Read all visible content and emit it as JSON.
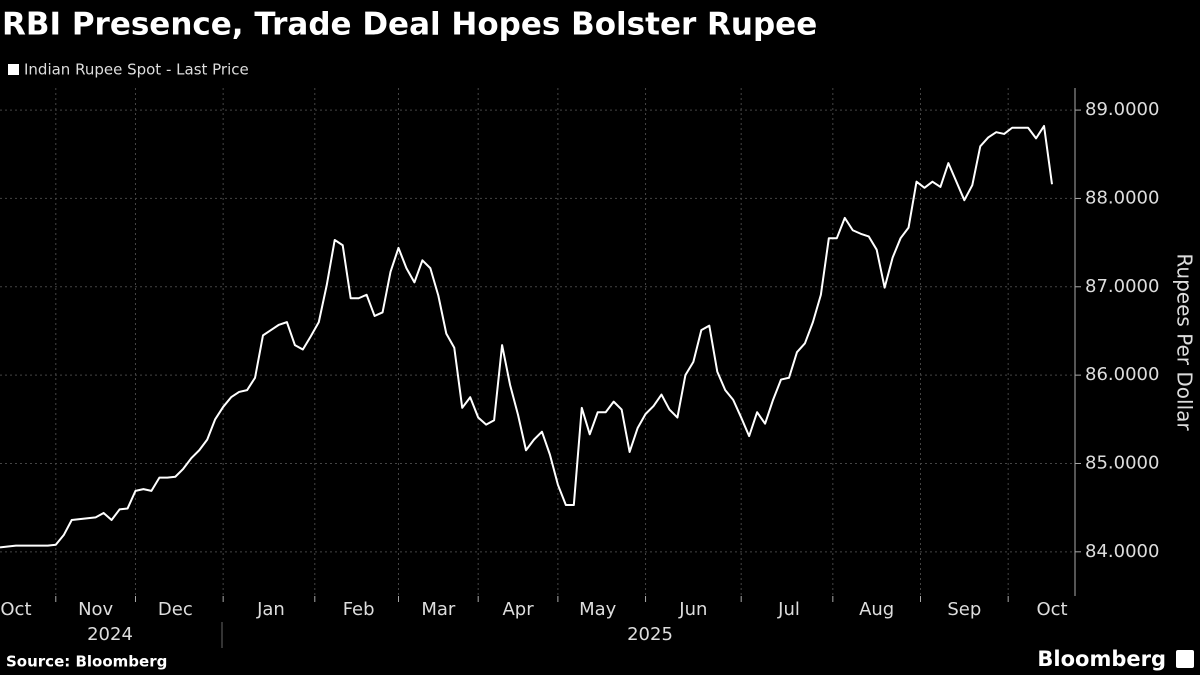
{
  "chart_data": {
    "type": "line",
    "title": "RBI Presence, Trade Deal Hopes Bolster Rupee",
    "y_axis_label": "Rupees Per Dollar",
    "source": "Source: Bloomberg",
    "brand": "Bloomberg",
    "x_group_labels": [
      "2024",
      "2025"
    ],
    "categories": [
      null,
      null,
      "Oct",
      null,
      null,
      null,
      null,
      null,
      null,
      null,
      null,
      null,
      "Nov",
      null,
      null,
      null,
      null,
      null,
      null,
      null,
      null,
      null,
      "Dec",
      null,
      null,
      null,
      null,
      null,
      null,
      null,
      null,
      null,
      null,
      null,
      "Jan",
      null,
      null,
      null,
      null,
      null,
      null,
      null,
      null,
      null,
      null,
      "Feb",
      null,
      null,
      null,
      null,
      null,
      null,
      null,
      null,
      null,
      "Mar",
      null,
      null,
      null,
      null,
      null,
      null,
      null,
      null,
      null,
      "Apr",
      null,
      null,
      null,
      null,
      null,
      null,
      null,
      null,
      null,
      "May",
      null,
      null,
      null,
      null,
      null,
      null,
      null,
      null,
      null,
      null,
      null,
      "Jun",
      null,
      null,
      null,
      null,
      null,
      null,
      null,
      null,
      null,
      null,
      null,
      "Jul",
      null,
      null,
      null,
      null,
      null,
      null,
      null,
      null,
      null,
      null,
      "Aug",
      null,
      null,
      null,
      null,
      null,
      null,
      null,
      null,
      null,
      null,
      "Sep",
      null,
      null,
      null,
      null,
      null,
      null,
      null,
      null,
      null,
      null,
      "Oct"
    ],
    "series": [
      {
        "name": "Indian Rupee Spot - Last Price",
        "color": "#ffffff",
        "values": [
          84.05,
          84.06,
          84.07,
          84.07,
          84.07,
          84.07,
          84.07,
          84.08,
          84.19,
          84.36,
          84.37,
          84.38,
          84.39,
          84.44,
          84.36,
          84.48,
          84.49,
          84.69,
          84.71,
          84.69,
          84.84,
          84.84,
          84.85,
          84.94,
          85.06,
          85.15,
          85.27,
          85.5,
          85.64,
          85.75,
          85.81,
          85.83,
          85.97,
          86.45,
          86.51,
          86.57,
          86.6,
          86.34,
          86.29,
          86.44,
          86.6,
          87.02,
          87.53,
          87.47,
          86.87,
          86.87,
          86.91,
          86.67,
          86.71,
          87.17,
          87.44,
          87.21,
          87.05,
          87.3,
          87.21,
          86.9,
          86.47,
          86.31,
          85.63,
          85.75,
          85.52,
          85.44,
          85.49,
          86.34,
          85.89,
          85.55,
          85.15,
          85.27,
          85.36,
          85.1,
          84.76,
          84.53,
          84.53,
          85.63,
          85.33,
          85.58,
          85.58,
          85.7,
          85.61,
          85.13,
          85.4,
          85.56,
          85.65,
          85.78,
          85.61,
          85.52,
          86.0,
          86.15,
          86.51,
          86.56,
          86.04,
          85.83,
          85.72,
          85.52,
          85.31,
          85.58,
          85.45,
          85.72,
          85.95,
          85.97,
          86.26,
          86.36,
          86.6,
          86.91,
          87.55,
          87.55,
          87.78,
          87.64,
          87.6,
          87.57,
          87.42,
          86.99,
          87.33,
          87.55,
          87.67,
          88.19,
          88.12,
          88.19,
          88.13,
          88.4,
          88.19,
          87.98,
          88.15,
          88.59,
          88.69,
          88.75,
          88.73,
          88.8,
          88.8,
          88.8,
          88.68,
          88.82,
          88.16
        ]
      }
    ],
    "ylim": [
      83.5,
      89.25
    ],
    "yticks": [
      {
        "value": 84,
        "label": "84.0000"
      },
      {
        "value": 85,
        "label": "85.0000"
      },
      {
        "value": 86,
        "label": "86.0000"
      },
      {
        "value": 87,
        "label": "87.0000"
      },
      {
        "value": 88,
        "label": "88.0000"
      },
      {
        "value": 89,
        "label": "89.0000"
      }
    ],
    "grid": true
  }
}
